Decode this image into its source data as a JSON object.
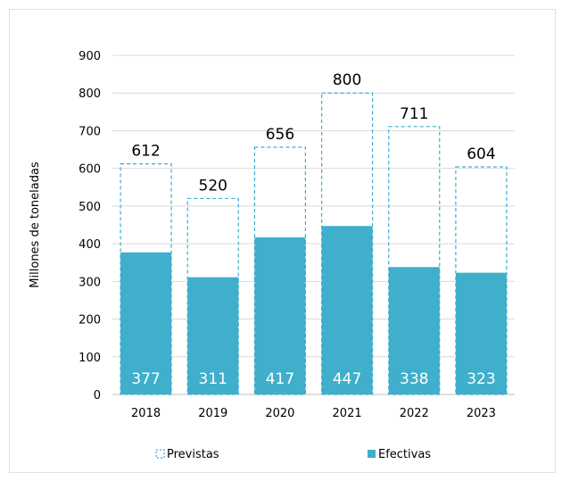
{
  "chart_data": {
    "type": "bar",
    "title": "",
    "ylabel": "Millones de toneladas",
    "xlabel": "",
    "ylim": [
      0,
      900
    ],
    "yticks": [
      0,
      100,
      200,
      300,
      400,
      500,
      600,
      700,
      800,
      900
    ],
    "grid": true,
    "legend_position": "bottom",
    "categories": [
      "2018",
      "2019",
      "2020",
      "2021",
      "2022",
      "2023"
    ],
    "series": [
      {
        "name": "Previstas",
        "style": "dashed-outline",
        "color": "#3aaed0",
        "values": [
          612,
          520,
          656,
          800,
          711,
          604
        ]
      },
      {
        "name": "Efectivas",
        "style": "filled",
        "color": "#3fafcb",
        "values": [
          377,
          311,
          417,
          447,
          338,
          323
        ]
      }
    ]
  }
}
